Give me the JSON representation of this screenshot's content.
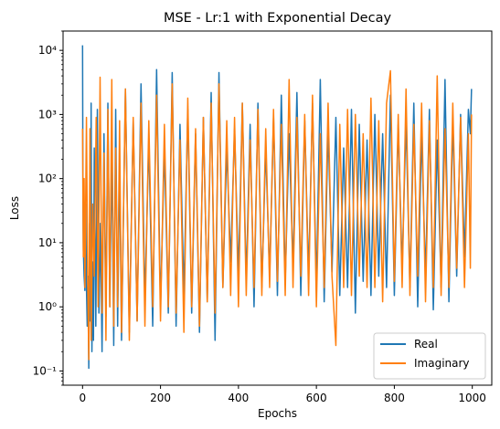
{
  "chart_data": {
    "type": "line",
    "title": "MSE - Lr:1 with Exponential Decay",
    "xlabel": "Epochs",
    "ylabel": "Loss",
    "xlim": [
      -50,
      1050
    ],
    "ylim": [
      0.06,
      20000
    ],
    "yscale": "log",
    "grid": false,
    "legend_position": "lower right",
    "x_ticks": [
      0,
      200,
      400,
      600,
      800,
      1000
    ],
    "x_tick_labels": [
      "0",
      "200",
      "400",
      "600",
      "800",
      "1000"
    ],
    "y_ticks": [
      0.1,
      1,
      10,
      100,
      1000,
      10000
    ],
    "y_tick_labels": [
      "10⁻¹",
      "10⁰",
      "10¹",
      "10²",
      "10³",
      "10⁴"
    ],
    "series": [
      {
        "name": "Real",
        "color": "#1f77b4",
        "x": [
          0,
          1,
          2,
          4,
          6,
          8,
          10,
          12,
          14,
          16,
          18,
          20,
          22,
          24,
          26,
          28,
          30,
          34,
          38,
          42,
          46,
          50,
          55,
          60,
          65,
          70,
          75,
          80,
          85,
          90,
          95,
          100,
          110,
          120,
          130,
          140,
          150,
          160,
          170,
          180,
          190,
          200,
          210,
          220,
          230,
          240,
          250,
          260,
          270,
          280,
          290,
          300,
          310,
          320,
          330,
          340,
          350,
          360,
          370,
          380,
          390,
          400,
          410,
          420,
          430,
          440,
          450,
          460,
          470,
          480,
          490,
          500,
          510,
          520,
          530,
          540,
          550,
          560,
          570,
          580,
          590,
          600,
          610,
          620,
          630,
          640,
          650,
          660,
          670,
          680,
          690,
          700,
          710,
          720,
          730,
          740,
          750,
          760,
          770,
          780,
          790,
          800,
          810,
          820,
          830,
          840,
          850,
          860,
          870,
          880,
          890,
          900,
          910,
          920,
          930,
          940,
          950,
          960,
          970,
          980,
          990,
          995,
          998
        ],
        "y": [
          12000,
          50,
          8,
          3,
          1.8,
          40,
          2,
          0.5,
          3,
          0.11,
          20,
          0.6,
          1500,
          0.2,
          5,
          0.3,
          300,
          0.5,
          1200,
          0.8,
          20,
          0.2,
          500,
          0.7,
          1500,
          1,
          300,
          0.25,
          1200,
          0.5,
          200,
          0.3,
          2500,
          0.4,
          800,
          0.6,
          3000,
          1.2,
          400,
          0.5,
          5000,
          1,
          300,
          0.8,
          4500,
          0.5,
          700,
          1.5,
          1200,
          0.8,
          500,
          0.4,
          900,
          1.2,
          2200,
          0.3,
          4500,
          2,
          300,
          5,
          600,
          3,
          1500,
          2.5,
          700,
          1,
          1500,
          2,
          300,
          3,
          900,
          1.5,
          2000,
          2.5,
          500,
          4,
          2200,
          1.5,
          800,
          3,
          1500,
          2,
          3500,
          1.2,
          600,
          3.5,
          900,
          1.5,
          300,
          2,
          1200,
          0.8,
          700,
          2.5,
          400,
          1.5,
          1000,
          3,
          500,
          2,
          2000,
          1.5,
          700,
          4,
          800,
          2,
          1500,
          1,
          500,
          3,
          1200,
          0.9,
          400,
          2,
          3500,
          1.2,
          800,
          3,
          1000,
          6,
          1200,
          500,
          2500
        ]
      },
      {
        "name": "Imaginary",
        "color": "#ff7f0e",
        "x": [
          0,
          2,
          4,
          6,
          8,
          10,
          13,
          16,
          19,
          22,
          26,
          30,
          35,
          40,
          45,
          50,
          55,
          60,
          65,
          70,
          75,
          80,
          85,
          90,
          95,
          100,
          110,
          120,
          130,
          140,
          150,
          160,
          170,
          180,
          190,
          200,
          210,
          220,
          230,
          240,
          250,
          260,
          270,
          280,
          290,
          300,
          310,
          320,
          330,
          340,
          350,
          360,
          370,
          380,
          390,
          400,
          410,
          420,
          430,
          440,
          450,
          460,
          470,
          480,
          490,
          500,
          510,
          520,
          530,
          540,
          550,
          560,
          570,
          580,
          590,
          600,
          610,
          620,
          630,
          640,
          650,
          660,
          670,
          680,
          690,
          700,
          710,
          720,
          730,
          740,
          750,
          760,
          770,
          780,
          790,
          800,
          810,
          820,
          830,
          840,
          850,
          860,
          870,
          880,
          890,
          900,
          910,
          920,
          930,
          940,
          950,
          960,
          970,
          980,
          990,
          995,
          998
        ],
        "y": [
          600,
          6,
          100,
          2,
          45,
          900,
          3,
          0.15,
          600,
          0.3,
          40,
          3,
          900,
          1,
          3800,
          0.8,
          250,
          0.3,
          1200,
          1,
          3500,
          0.5,
          300,
          1,
          800,
          0.4,
          2500,
          0.3,
          900,
          0.6,
          1500,
          0.5,
          800,
          1,
          2000,
          0.6,
          700,
          1,
          3000,
          0.8,
          400,
          0.4,
          1800,
          1,
          600,
          0.5,
          900,
          1.2,
          1500,
          0.8,
          3000,
          2,
          800,
          1.5,
          900,
          1,
          1500,
          1.5,
          400,
          2,
          1200,
          1.5,
          600,
          2,
          1200,
          2.5,
          700,
          1.5,
          3500,
          2,
          900,
          3,
          1000,
          1.5,
          2000,
          1,
          500,
          2,
          1500,
          3,
          0.25,
          700,
          2,
          1200,
          1.5,
          1000,
          3,
          500,
          2,
          1800,
          2,
          800,
          1.2,
          1500,
          4800,
          2.5,
          1000,
          2,
          2500,
          1.5,
          700,
          3,
          1500,
          1.2,
          800,
          2,
          4000,
          1.5,
          600,
          2,
          1500,
          4,
          900,
          2,
          500,
          4,
          1000
        ]
      }
    ]
  }
}
